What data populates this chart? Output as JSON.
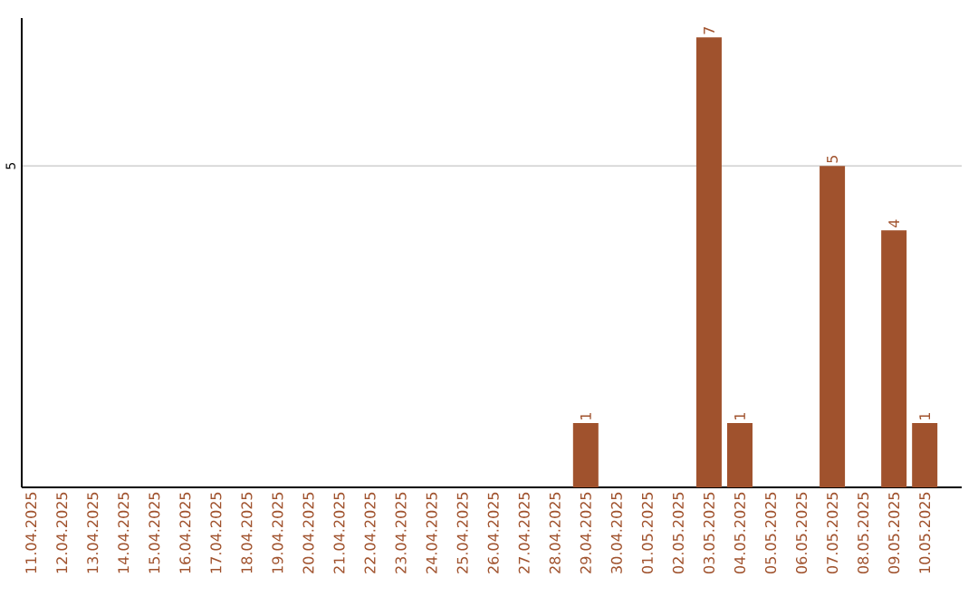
{
  "chart_data": {
    "type": "bar",
    "categories": [
      "11.04.2025",
      "12.04.2025",
      "13.04.2025",
      "14.04.2025",
      "15.04.2025",
      "16.04.2025",
      "17.04.2025",
      "18.04.2025",
      "19.04.2025",
      "20.04.2025",
      "21.04.2025",
      "22.04.2025",
      "23.04.2025",
      "24.04.2025",
      "25.04.2025",
      "26.04.2025",
      "27.04.2025",
      "28.04.2025",
      "29.04.2025",
      "30.04.2025",
      "01.05.2025",
      "02.05.2025",
      "03.05.2025",
      "04.05.2025",
      "05.05.2025",
      "06.05.2025",
      "07.05.2025",
      "08.05.2025",
      "09.05.2025",
      "10.05.2025"
    ],
    "values": [
      null,
      null,
      null,
      null,
      null,
      null,
      null,
      null,
      null,
      null,
      null,
      null,
      null,
      null,
      null,
      null,
      null,
      null,
      1,
      null,
      null,
      null,
      7,
      1,
      null,
      null,
      5,
      null,
      4,
      1
    ],
    "data_labels": true,
    "color": "#a0522d",
    "ylim": [
      0,
      7.3
    ],
    "yticks": [
      5
    ],
    "grid": "y"
  }
}
